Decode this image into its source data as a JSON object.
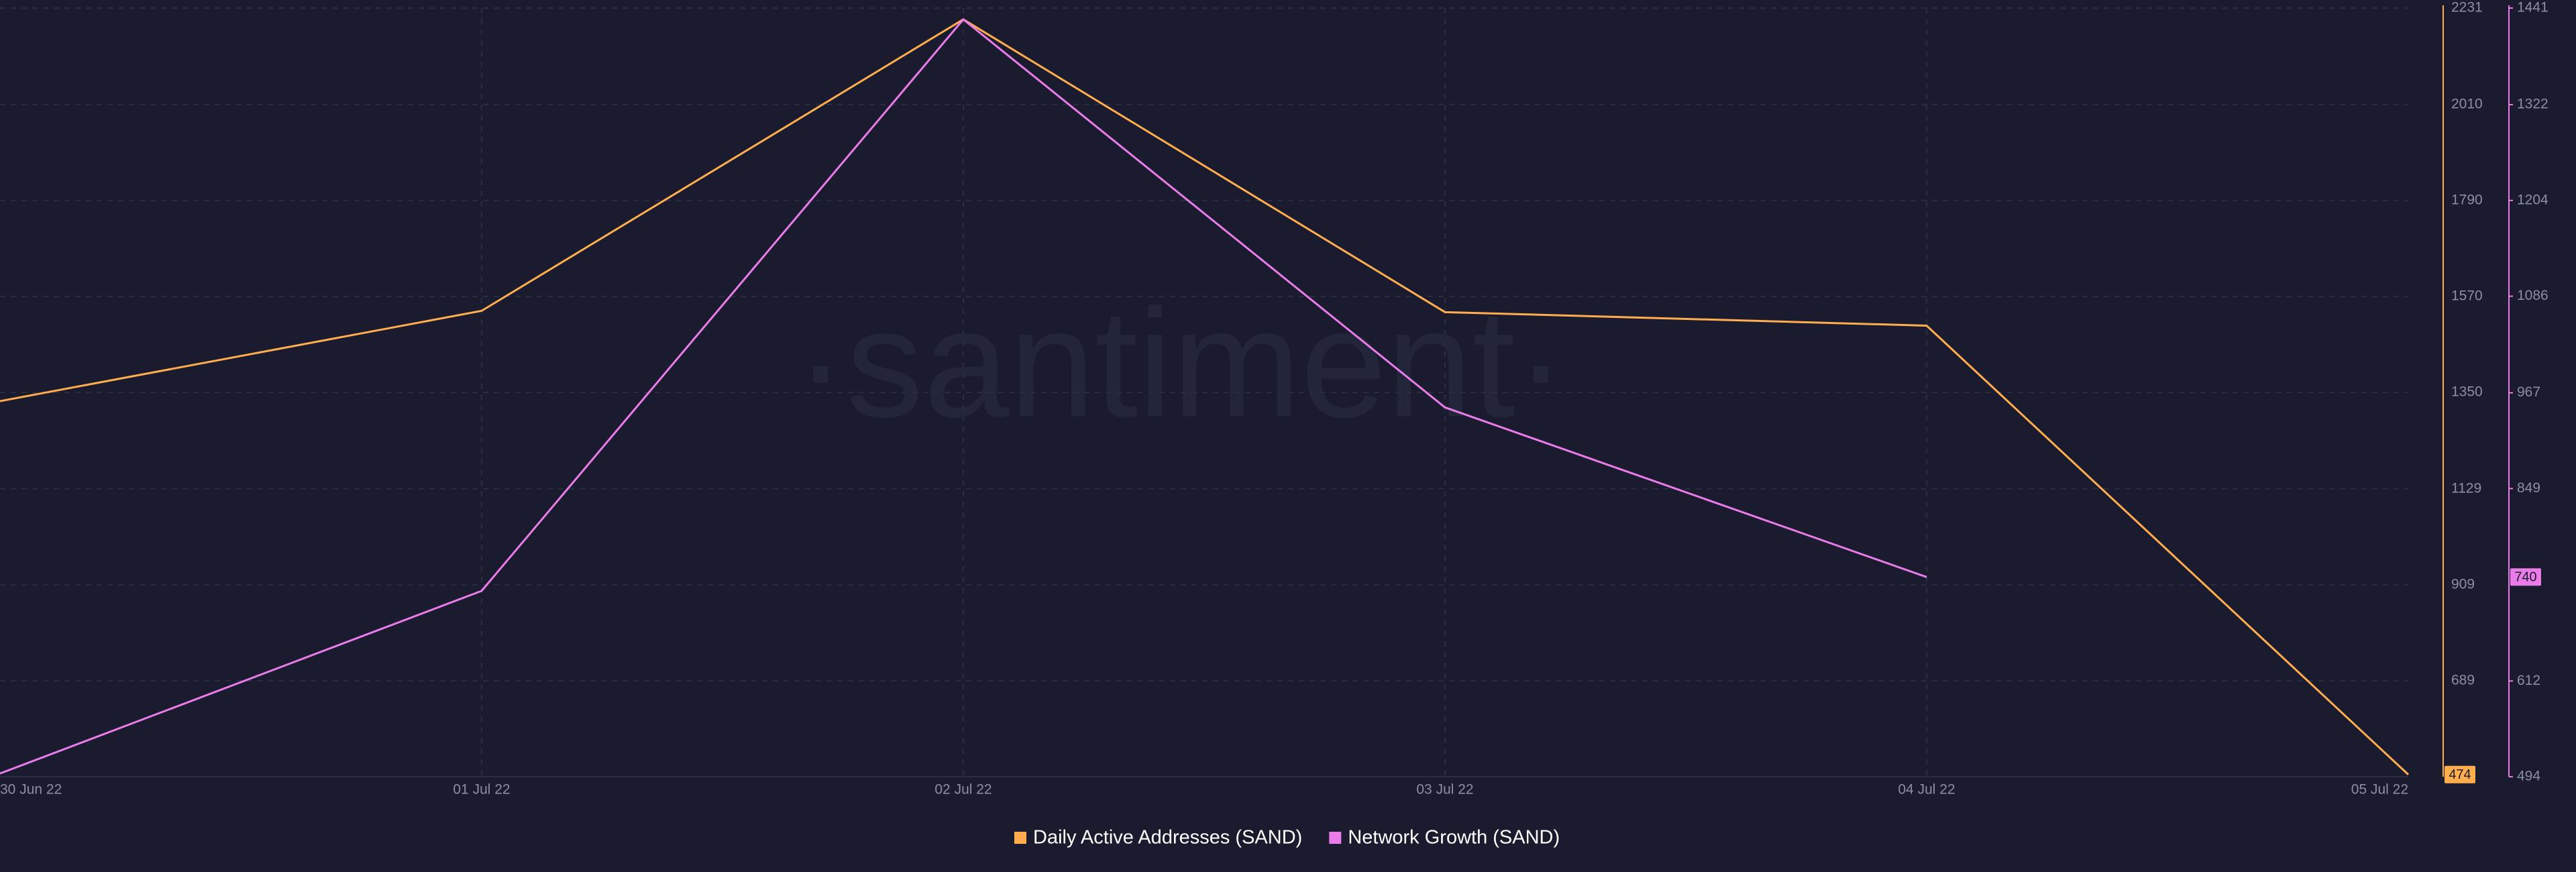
{
  "chart_data": {
    "type": "line",
    "watermark": "·santiment·",
    "categories": [
      "30 Jun 22",
      "01 Jul 22",
      "02 Jul 22",
      "03 Jul 22",
      "04 Jul 22",
      "05 Jul 22"
    ],
    "series": [
      {
        "name": "Daily Active Addresses (SAND)",
        "color": "#ffad4d",
        "values": [
          1330,
          1537,
          2205,
          1534,
          1503,
          474
        ]
      },
      {
        "name": "Network Growth (SAND)",
        "color": "#e97ce9",
        "axis": "y2",
        "values": [
          498,
          723,
          1427,
          949,
          740,
          null
        ]
      }
    ],
    "ylim": [
      469,
      2231
    ],
    "yticks": [
      689,
      909,
      1129,
      1350,
      1570,
      1790,
      2010,
      2231
    ],
    "y2lim": [
      494,
      1441
    ],
    "y2ticks": [
      494,
      612,
      849,
      967,
      1086,
      1204,
      1322,
      1441
    ],
    "grid": true
  }
}
